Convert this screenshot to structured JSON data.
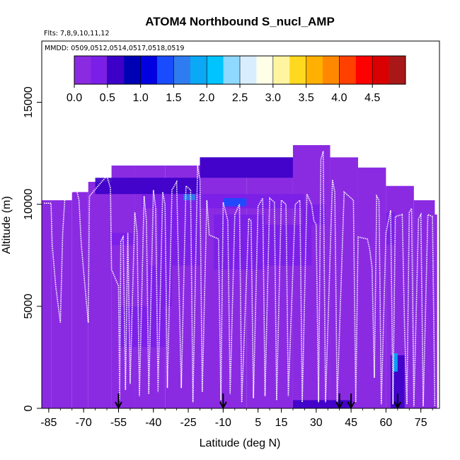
{
  "chart_data": {
    "type": "heatmap",
    "title": "ATOM4 Northbound S_nucl_AMP",
    "flights_note": "Flts: 7,8,9,10,11,12",
    "dates_note": "MMDD: 0509,0512,0514,0517,0518,0519",
    "xlabel": "Latitude (deg N)",
    "ylabel": "Altitude (m)",
    "xlim": [
      -88,
      83
    ],
    "ylim": [
      0,
      18000
    ],
    "x_ticks": [
      {
        "value": -85,
        "label": "-85"
      },
      {
        "value": -70,
        "label": "-70"
      },
      {
        "value": -55,
        "label": "-55"
      },
      {
        "value": -40,
        "label": "-40"
      },
      {
        "value": -25,
        "label": "-25"
      },
      {
        "value": -10,
        "label": "-10"
      },
      {
        "value": 5,
        "label": "5"
      },
      {
        "value": 15,
        "label": "15"
      },
      {
        "value": 30,
        "label": "30"
      },
      {
        "value": 45,
        "label": "45"
      },
      {
        "value": 60,
        "label": "60"
      },
      {
        "value": 75,
        "label": "75"
      }
    ],
    "y_ticks": [
      {
        "value": 0,
        "label": "0"
      },
      {
        "value": 5000,
        "label": "5000"
      },
      {
        "value": 10000,
        "label": "10000"
      },
      {
        "value": 15000,
        "label": "15000"
      }
    ],
    "colorbar": {
      "range": [
        0,
        5
      ],
      "ticks": [
        {
          "value": 0,
          "label": "0.0"
        },
        {
          "value": 0.5,
          "label": "0.5"
        },
        {
          "value": 1,
          "label": "1.0"
        },
        {
          "value": 1.5,
          "label": "1.5"
        },
        {
          "value": 2,
          "label": "2.0"
        },
        {
          "value": 2.5,
          "label": "2.5"
        },
        {
          "value": 3,
          "label": "3.0"
        },
        {
          "value": 3.5,
          "label": "3.5"
        },
        {
          "value": 4,
          "label": "4.0"
        },
        {
          "value": 4.5,
          "label": "4.5"
        }
      ],
      "colors": [
        "#8a2be2",
        "#7b1fe8",
        "#3d00c8",
        "#0000b4",
        "#0000e0",
        "#1a4cff",
        "#2e7cf0",
        "#0aa8f5",
        "#00c4ff",
        "#8fd8ff",
        "#d8eeff",
        "#ffffe8",
        "#fff4a0",
        "#ffd820",
        "#ffb000",
        "#ff8800",
        "#ff4000",
        "#ff0000",
        "#d80000",
        "#a81818"
      ]
    },
    "background_value": 0.1,
    "profile_bands": [
      {
        "lon": -86,
        "lat0": -88,
        "lat1": -84,
        "top": 10200
      },
      {
        "lon": -78,
        "lat0": -84,
        "lat1": -75,
        "top": 10200
      },
      {
        "lon": -70,
        "lat0": -75,
        "lat1": -68,
        "top": 10600
      },
      {
        "lon": -62,
        "lat0": -68,
        "lat1": -58,
        "top": 11100
      },
      {
        "lon": -55,
        "lat0": -58,
        "lat1": -48,
        "top": 11900
      },
      {
        "lon": -42,
        "lat0": -48,
        "lat1": -35,
        "top": 11900
      },
      {
        "lon": -30,
        "lat0": -35,
        "lat1": -20,
        "top": 11900
      },
      {
        "lon": -14,
        "lat0": -20,
        "lat1": 0,
        "top": 12300
      },
      {
        "lon": 10,
        "lat0": 0,
        "lat1": 20,
        "top": 12300
      },
      {
        "lon": 28,
        "lat0": 20,
        "lat1": 36,
        "top": 12900
      },
      {
        "lon": 44,
        "lat0": 36,
        "lat1": 48,
        "top": 12300
      },
      {
        "lon": 54,
        "lat0": 48,
        "lat1": 60,
        "top": 11800
      },
      {
        "lon": 66,
        "lat0": 60,
        "lat1": 72,
        "top": 10900
      },
      {
        "lon": 76,
        "lat0": 72,
        "lat1": 81,
        "top": 10200
      },
      {
        "lon": 82,
        "lat0": 81,
        "lat1": 82,
        "top": 9500
      }
    ],
    "patches": [
      {
        "lat0": -65,
        "lat1": -20,
        "alt0": 10500,
        "alt1": 11300,
        "value": 0.55
      },
      {
        "lat0": -20,
        "lat1": 20,
        "alt0": 11300,
        "alt1": 12300,
        "value": 0.5
      },
      {
        "lat0": -45,
        "lat1": 25,
        "alt0": 9800,
        "alt1": 10500,
        "value": 0.45
      },
      {
        "lat0": -38,
        "lat1": -20,
        "alt0": 7000,
        "alt1": 9800,
        "value": 0.4
      },
      {
        "lat0": -42,
        "lat1": -32,
        "alt0": 5000,
        "alt1": 7000,
        "value": 0.45
      },
      {
        "lat0": -14,
        "lat1": 8,
        "alt0": 6800,
        "alt1": 9500,
        "value": 0.35
      },
      {
        "lat0": 8,
        "lat1": 28,
        "alt0": 7000,
        "alt1": 9000,
        "value": 0.3
      },
      {
        "lat0": -58,
        "lat1": -48,
        "alt0": 8000,
        "alt1": 8600,
        "value": 0.45
      },
      {
        "lat0": -10,
        "lat1": 0,
        "alt0": 9900,
        "alt1": 10300,
        "value": 1.4
      },
      {
        "lat0": -27,
        "lat1": -22,
        "alt0": 10200,
        "alt1": 10500,
        "value": 1.5
      },
      {
        "lat0": -55,
        "lat1": -35,
        "alt0": 3000,
        "alt1": 5000,
        "value": 0.25
      },
      {
        "lat0": 20,
        "lat1": 45,
        "alt0": 0,
        "alt1": 400,
        "value": 0.55
      },
      {
        "lat0": 62,
        "lat1": 68,
        "alt0": 0,
        "alt1": 2600,
        "value": 0.7
      },
      {
        "lat0": 63,
        "lat1": 65,
        "alt0": 1800,
        "alt1": 2700,
        "value": 1.9
      },
      {
        "lat0": 60,
        "lat1": 64,
        "alt0": 8000,
        "alt1": 9600,
        "value": 0.35
      },
      {
        "lat0": 24,
        "lat1": 34,
        "alt0": 9000,
        "alt1": 10000,
        "value": 0.4
      }
    ],
    "flight_tracks": [
      [
        [
          -87,
          10050
        ],
        [
          -84,
          10050
        ],
        [
          -83.5,
          8000
        ],
        [
          -82,
          6000
        ],
        [
          -80,
          4200
        ],
        [
          -79,
          8600
        ],
        [
          -78,
          10450
        ],
        [
          -73,
          10700
        ],
        [
          -72,
          10200
        ],
        [
          -71,
          8000
        ],
        [
          -68,
          4200
        ],
        [
          -67.5,
          10400
        ],
        [
          -60,
          11400
        ],
        [
          -58.5,
          10800
        ],
        [
          -58,
          6800
        ],
        [
          -55,
          6000
        ],
        [
          -54.5,
          400
        ],
        [
          -54,
          8200
        ],
        [
          -53,
          8400
        ],
        [
          -52,
          900
        ],
        [
          -51,
          8600
        ],
        [
          -50,
          1200
        ],
        [
          -48,
          9600
        ],
        [
          -47,
          8600
        ],
        [
          -46,
          600
        ],
        [
          -44,
          10400
        ],
        [
          -43,
          9200
        ],
        [
          -42,
          700
        ],
        [
          -40,
          10700
        ],
        [
          -39,
          9800
        ],
        [
          -38,
          800
        ],
        [
          -36,
          10600
        ],
        [
          -35,
          10000
        ],
        [
          -34,
          1000
        ],
        [
          -32,
          10700
        ],
        [
          -30,
          11100
        ],
        [
          -28,
          1000
        ],
        [
          -26,
          10900
        ],
        [
          -24,
          10700
        ],
        [
          -23,
          300
        ],
        [
          -21,
          11900
        ],
        [
          -20,
          11200
        ],
        [
          -19,
          800
        ],
        [
          -17,
          10200
        ],
        [
          -16,
          8500
        ],
        [
          -12,
          8300
        ],
        [
          -11,
          400
        ],
        [
          -10,
          10100
        ],
        [
          -8,
          9200
        ],
        [
          -7,
          700
        ],
        [
          -5,
          9500
        ],
        [
          -3,
          10000
        ],
        [
          -2,
          300
        ],
        [
          1,
          9300
        ],
        [
          2,
          9200
        ],
        [
          3,
          500
        ],
        [
          5,
          9900
        ],
        [
          7,
          10300
        ],
        [
          8,
          600
        ],
        [
          10,
          10300
        ],
        [
          12,
          10100
        ],
        [
          13,
          400
        ],
        [
          15,
          10200
        ],
        [
          17,
          10000
        ],
        [
          18,
          600
        ],
        [
          21,
          10000
        ],
        [
          23,
          10200
        ],
        [
          24,
          300
        ],
        [
          26,
          10500
        ],
        [
          28,
          10000
        ],
        [
          29,
          9200
        ],
        [
          30,
          9000
        ],
        [
          31,
          300
        ],
        [
          32,
          12200
        ],
        [
          33,
          12600
        ],
        [
          34,
          300
        ],
        [
          37,
          11200
        ],
        [
          38,
          10600
        ],
        [
          39,
          300
        ],
        [
          42,
          10600
        ],
        [
          46,
          10200
        ],
        [
          47,
          300
        ],
        [
          48,
          8400
        ],
        [
          52,
          8300
        ],
        [
          53,
          7800
        ],
        [
          54,
          6900
        ],
        [
          55,
          1500
        ],
        [
          56,
          10400
        ],
        [
          57,
          10200
        ],
        [
          58,
          200
        ],
        [
          60,
          8600
        ],
        [
          62,
          9700
        ],
        [
          63,
          200
        ],
        [
          64,
          9400
        ],
        [
          67,
          9500
        ],
        [
          68,
          3900
        ],
        [
          69,
          200
        ],
        [
          70,
          9600
        ],
        [
          71,
          9800
        ],
        [
          72,
          100
        ],
        [
          74,
          9300
        ],
        [
          75,
          9500
        ],
        [
          76,
          100
        ],
        [
          78,
          9500
        ],
        [
          80,
          9400
        ],
        [
          81,
          100
        ]
      ]
    ],
    "sounding_markers": [
      -55,
      -10,
      40,
      45,
      65
    ]
  }
}
